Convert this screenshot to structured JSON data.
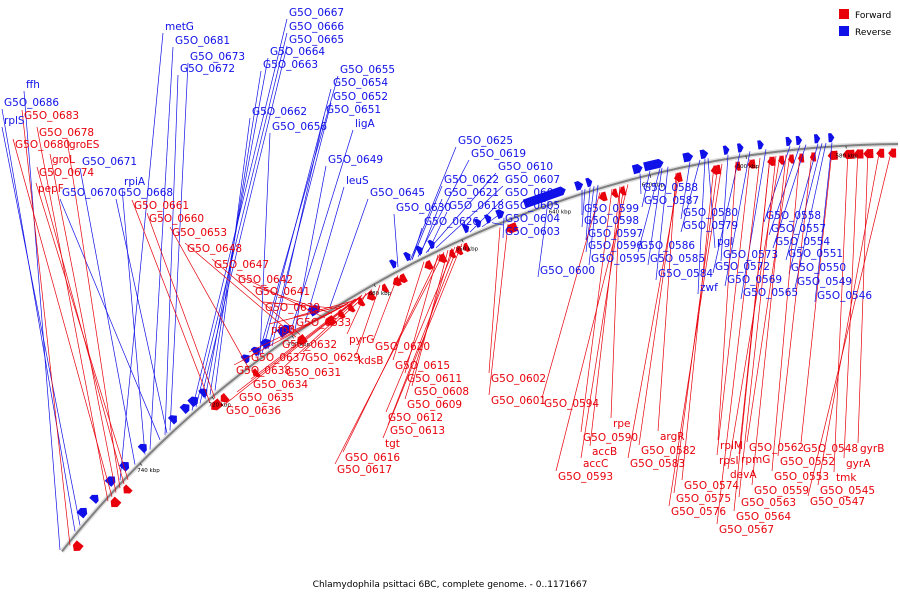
{
  "colors": {
    "forward": "#e8000b",
    "reverse": "#1010e8",
    "backbone": "#808080"
  },
  "legend": {
    "forward": "Forward",
    "reverse": "Reverse"
  },
  "caption": "Chlamydophila psittaci 6BC, complete genome. - 0..1171667",
  "ticks": [
    "740 kbp",
    "720 kbp",
    "700 kbp",
    "680 kbp",
    "660 kbp",
    "640 kbp",
    "620 kbp",
    "600 kbp",
    "580 kbp"
  ],
  "reverse_labels": [
    "metG",
    "G5O_0681",
    "G5O_0667",
    "G5O_0666",
    "G5O_0665",
    "G5O_0664",
    "G5O_0663",
    "G5O_0673",
    "G5O_0672",
    "ffh",
    "G5O_0686",
    "rplS",
    "G5O_0655",
    "G5O_0654",
    "G5O_0652",
    "G5O_0651",
    "G5O_0662",
    "G5O_0656",
    "ligA",
    "G5O_0671",
    "rpiA",
    "G5O_0670",
    "G5O_0668",
    "G5O_0649",
    "leuS",
    "G5O_0645",
    "G5O_0625",
    "G5O_0619",
    "G5O_0610",
    "G5O_0622",
    "G5O_0607",
    "G5O_0621",
    "G5O_0606",
    "G5O_0618",
    "G5O_0605",
    "G5O_0630",
    "G5O_0604",
    "G5O_0626",
    "G5O_0603",
    "G5O_0588",
    "G5O_0587",
    "G5O_0599",
    "G5O_0580",
    "G5O_0598",
    "G5O_0579",
    "G5O_0597",
    "G5O_0586",
    "pgl",
    "G5O_0596",
    "G5O_0573",
    "G5O_0595",
    "G5O_0585",
    "G5O_0572",
    "G5O_0584",
    "zwf",
    "G5O_0600",
    "G5O_0569",
    "G5O_0565",
    "G5O_0558",
    "G5O_0557",
    "G5O_0554",
    "G5O_0551",
    "G5O_0550",
    "G5O_0549",
    "G5O_0546"
  ],
  "forward_labels": [
    "G5O_0683",
    "G5O_0678",
    "G5O_0680",
    "groES",
    "groL",
    "G5O_0674",
    "pepF",
    "G5O_0661",
    "G5O_0660",
    "G5O_0653",
    "G5O_0648",
    "G5O_0647",
    "G5O_0642",
    "G5O_0641",
    "G5O_0639",
    "pfpB",
    "G5O_0633",
    "G5O_0632",
    "pyrG",
    "G5O_0637",
    "G5O_0629",
    "kdsB",
    "G5O_0638",
    "G5O_0631",
    "G5O_0634",
    "G5O_0635",
    "G5O_0636",
    "G5O_0620",
    "G5O_0615",
    "G5O_0611",
    "G5O_0608",
    "G5O_0609",
    "G5O_0612",
    "G5O_0613",
    "tgt",
    "G5O_0616",
    "G5O_0617",
    "G5O_0602",
    "G5O_0601",
    "G5O_0594",
    "rpe",
    "G5O_0590",
    "accB",
    "accC",
    "G5O_0593",
    "argR",
    "G5O_0582",
    "G5O_0583",
    "G5O_0574",
    "G5O_0575",
    "G5O_0576",
    "rplM",
    "rpsI",
    "rpmG",
    "devA",
    "G5O_0562",
    "G5O_0552",
    "G5O_0553",
    "G5O_0559",
    "G5O_0563",
    "G5O_0564",
    "G5O_0567",
    "G5O_0548",
    "gyrB",
    "gyrA",
    "tmk",
    "G5O_0545",
    "G5O_0547"
  ]
}
